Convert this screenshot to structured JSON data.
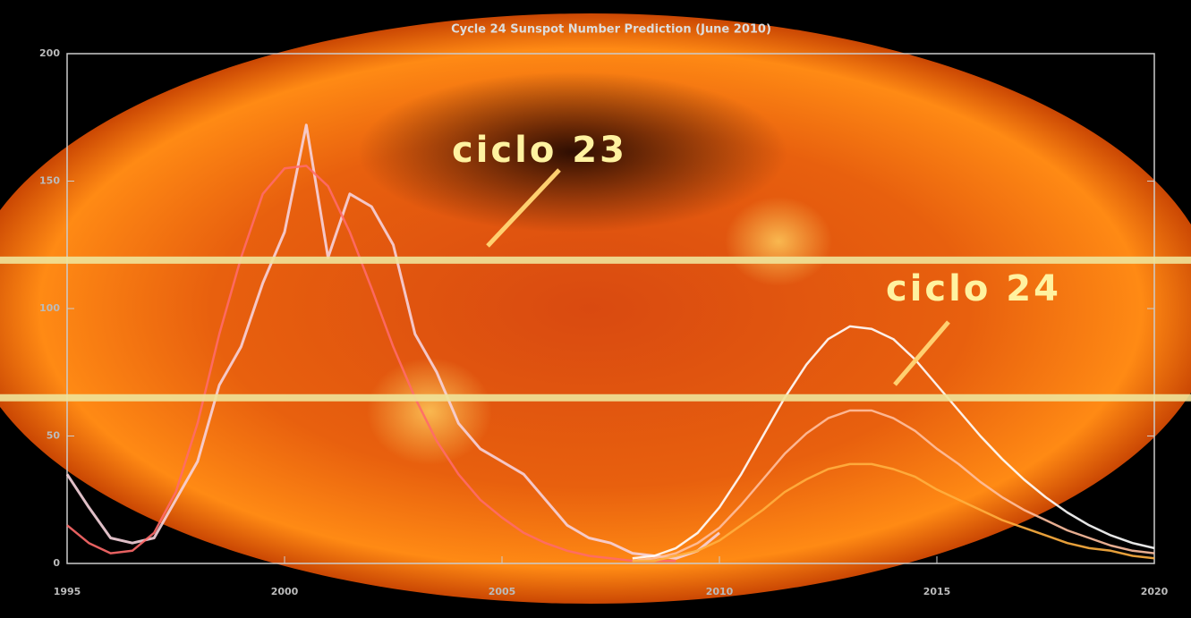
{
  "chart_data": {
    "type": "line",
    "title": "Cycle 24 Sunspot Number Prediction (June 2010)",
    "annotations": [
      "ciclo 23",
      "ciclo 24"
    ],
    "x": [
      1995,
      1995.5,
      1996,
      1996.5,
      1997,
      1997.5,
      1998,
      1998.5,
      1999,
      1999.5,
      2000,
      2000.5,
      2001,
      2001.5,
      2002,
      2002.5,
      2003,
      2003.5,
      2004,
      2004.5,
      2005,
      2005.5,
      2006,
      2006.5,
      2007,
      2007.5,
      2008,
      2008.5,
      2009,
      2009.5,
      2010,
      2010.5,
      2011,
      2011.5,
      2012,
      2012.5,
      2013,
      2013.5,
      2014,
      2014.5,
      2015,
      2015.5,
      2016,
      2016.5,
      2017,
      2017.5,
      2018,
      2018.5,
      2019,
      2019.5,
      2020
    ],
    "series": [
      {
        "color": "#f6d3dc",
        "values": [
          35,
          22,
          10,
          8,
          10,
          25,
          40,
          70,
          85,
          110,
          130,
          172,
          120,
          145,
          140,
          125,
          90,
          75,
          55,
          45,
          40,
          35,
          25,
          15,
          10,
          8,
          4,
          3,
          2,
          5,
          12,
          null,
          null,
          null,
          null,
          null,
          null,
          null,
          null,
          null,
          null,
          null,
          null,
          null,
          null,
          null,
          null,
          null,
          null,
          null,
          null
        ]
      },
      {
        "color": "#ff6a6a",
        "values": [
          15,
          8,
          4,
          5,
          12,
          28,
          55,
          90,
          120,
          145,
          155,
          156,
          148,
          130,
          108,
          85,
          65,
          48,
          35,
          25,
          18,
          12,
          8,
          5,
          3,
          2,
          1,
          1,
          1,
          null,
          null,
          null,
          null,
          null,
          null,
          null,
          null,
          null,
          null,
          null,
          null,
          null,
          null,
          null,
          null,
          null,
          null,
          null,
          null,
          null,
          null
        ]
      },
      {
        "color": "#ffffff",
        "values": [
          null,
          null,
          null,
          null,
          null,
          null,
          null,
          null,
          null,
          null,
          null,
          null,
          null,
          null,
          null,
          null,
          null,
          null,
          null,
          null,
          null,
          null,
          null,
          null,
          null,
          null,
          2,
          3,
          6,
          12,
          22,
          35,
          50,
          65,
          78,
          88,
          93,
          92,
          88,
          80,
          70,
          60,
          50,
          41,
          33,
          26,
          20,
          15,
          11,
          8,
          6
        ]
      },
      {
        "color": "#ffc0a0",
        "values": [
          null,
          null,
          null,
          null,
          null,
          null,
          null,
          null,
          null,
          null,
          null,
          null,
          null,
          null,
          null,
          null,
          null,
          null,
          null,
          null,
          null,
          null,
          null,
          null,
          null,
          null,
          1,
          2,
          4,
          8,
          14,
          23,
          33,
          43,
          51,
          57,
          60,
          60,
          57,
          52,
          45,
          39,
          32,
          26,
          21,
          17,
          13,
          10,
          7,
          5,
          4
        ]
      },
      {
        "color": "#ffb040",
        "values": [
          null,
          null,
          null,
          null,
          null,
          null,
          null,
          null,
          null,
          null,
          null,
          null,
          null,
          null,
          null,
          null,
          null,
          null,
          null,
          null,
          null,
          null,
          null,
          null,
          null,
          null,
          1,
          1,
          3,
          5,
          9,
          15,
          21,
          28,
          33,
          37,
          39,
          39,
          37,
          34,
          29,
          25,
          21,
          17,
          14,
          11,
          8,
          6,
          5,
          3,
          2
        ]
      }
    ],
    "reference_lines": [
      119,
      65
    ],
    "reference_color": "#f0e49a",
    "xlim": [
      1995,
      2020
    ],
    "xticks": [
      1995,
      2000,
      2005,
      2010,
      2015,
      2020
    ],
    "ylim": [
      0,
      200
    ],
    "yticks": [
      0,
      50,
      100,
      150,
      200
    ]
  }
}
